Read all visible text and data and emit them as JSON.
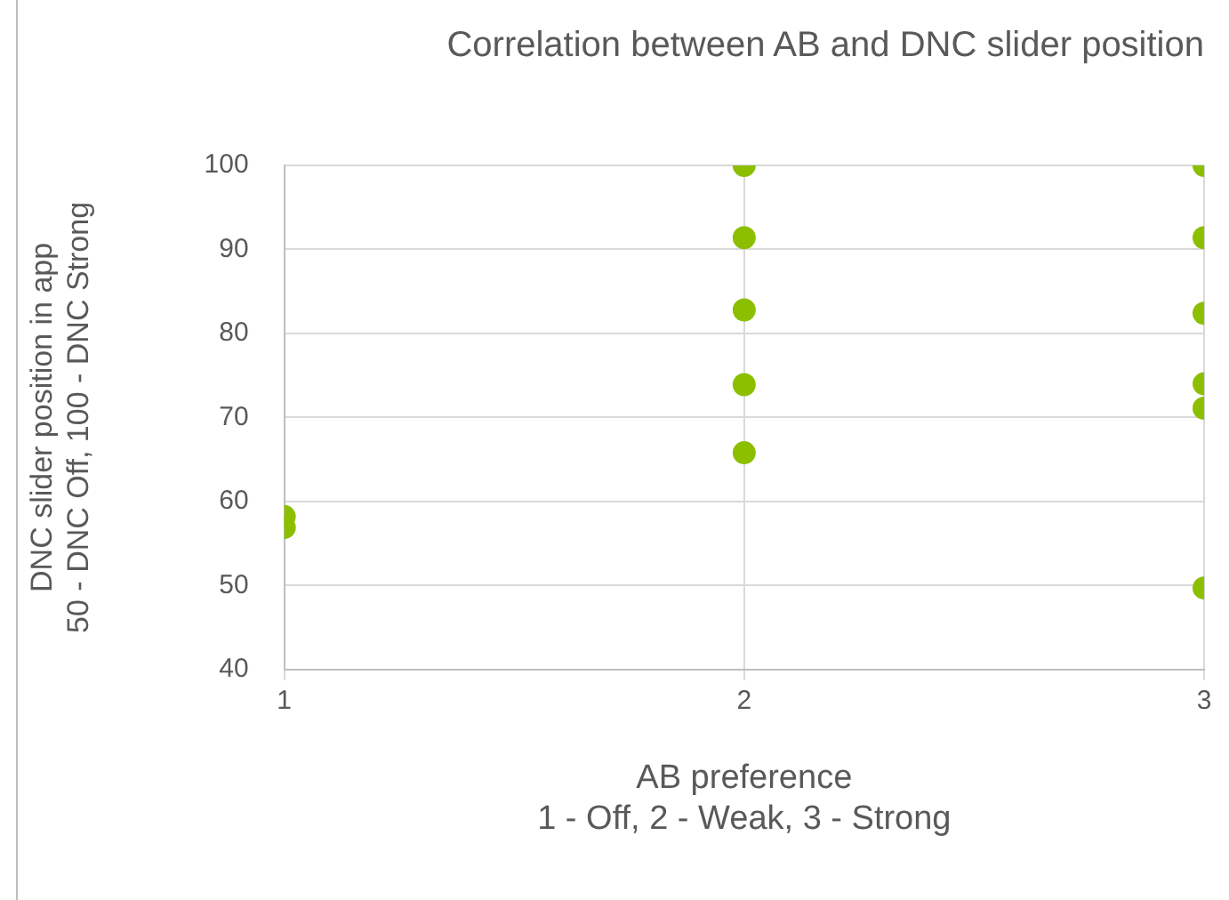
{
  "chart_data": {
    "type": "scatter",
    "title": "Correlation between AB and DNC slider position",
    "xlabel": "AB preference\n1 - Off, 2 - Weak, 3 - Strong",
    "ylabel": "DNC slider position in app\n50 - DNC Off, 100 - DNC Strong",
    "series": [
      {
        "color": "#8cbf00",
        "x": [
          1,
          1,
          2,
          2,
          2,
          2,
          2,
          3,
          3,
          3,
          3,
          3,
          3
        ],
        "values": [
          58.2,
          56.9,
          100,
          91.4,
          82.8,
          73.9,
          65.8,
          100,
          91.4,
          82.4,
          74.0,
          71.1,
          49.7
        ]
      }
    ],
    "xlim": [
      1,
      3
    ],
    "xticks": [
      1,
      2,
      3
    ],
    "ylim": [
      40,
      100
    ],
    "yticks": [
      40,
      50,
      60,
      70,
      80,
      90,
      100
    ],
    "grid": true,
    "legend": false,
    "marker": "circle"
  }
}
